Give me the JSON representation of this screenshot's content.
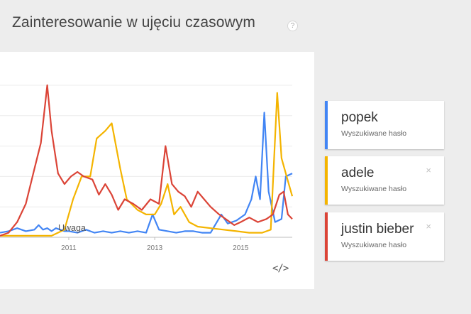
{
  "header": {
    "title": "Zainteresowanie w ujęciu czasowym",
    "help_icon": "?"
  },
  "chart": {
    "annotation": "Uwaga",
    "embed_icon": "</>"
  },
  "terms": [
    {
      "name": "popek",
      "subtitle": "Wyszukiwane hasło",
      "color": "#4285f4",
      "removable": false
    },
    {
      "name": "adele",
      "subtitle": "Wyszukiwane hasło",
      "color": "#f4b400",
      "removable": true,
      "close": "×"
    },
    {
      "name": "justin bieber",
      "subtitle": "Wyszukiwane hasło",
      "color": "#db4437",
      "removable": true,
      "close": "×"
    }
  ],
  "chart_data": {
    "type": "line",
    "title": "",
    "xlabel": "",
    "ylabel": "",
    "x_ticks": [
      "2011",
      "2013",
      "2015"
    ],
    "xlim": [
      2009.4,
      2016.2
    ],
    "ylim": [
      0,
      100
    ],
    "grid": true,
    "series": [
      {
        "name": "popek",
        "color": "#4285f4",
        "points": [
          [
            2009.4,
            3
          ],
          [
            2009.6,
            4
          ],
          [
            2009.8,
            6
          ],
          [
            2010.0,
            4
          ],
          [
            2010.2,
            5
          ],
          [
            2010.3,
            8
          ],
          [
            2010.4,
            5
          ],
          [
            2010.5,
            6
          ],
          [
            2010.6,
            4
          ],
          [
            2010.7,
            6
          ],
          [
            2010.8,
            5
          ],
          [
            2010.9,
            4
          ],
          [
            2011.0,
            4
          ],
          [
            2011.2,
            3
          ],
          [
            2011.4,
            5
          ],
          [
            2011.6,
            3
          ],
          [
            2011.8,
            4
          ],
          [
            2012.0,
            3
          ],
          [
            2012.2,
            4
          ],
          [
            2012.4,
            3
          ],
          [
            2012.6,
            4
          ],
          [
            2012.8,
            3
          ],
          [
            2012.95,
            15
          ],
          [
            2013.1,
            5
          ],
          [
            2013.3,
            4
          ],
          [
            2013.5,
            3
          ],
          [
            2013.7,
            4
          ],
          [
            2013.9,
            4
          ],
          [
            2014.1,
            3
          ],
          [
            2014.3,
            3
          ],
          [
            2014.55,
            15
          ],
          [
            2014.7,
            9
          ],
          [
            2014.9,
            11
          ],
          [
            2015.1,
            15
          ],
          [
            2015.25,
            25
          ],
          [
            2015.35,
            40
          ],
          [
            2015.45,
            25
          ],
          [
            2015.55,
            82
          ],
          [
            2015.65,
            30
          ],
          [
            2015.8,
            10
          ],
          [
            2015.95,
            12
          ],
          [
            2016.05,
            40
          ],
          [
            2016.2,
            42
          ]
        ]
      },
      {
        "name": "adele",
        "color": "#f4b400",
        "points": [
          [
            2009.4,
            1
          ],
          [
            2009.8,
            1
          ],
          [
            2010.2,
            1
          ],
          [
            2010.6,
            1
          ],
          [
            2010.9,
            5
          ],
          [
            2011.1,
            25
          ],
          [
            2011.3,
            40
          ],
          [
            2011.5,
            40
          ],
          [
            2011.65,
            65
          ],
          [
            2011.85,
            70
          ],
          [
            2012.0,
            75
          ],
          [
            2012.2,
            45
          ],
          [
            2012.35,
            25
          ],
          [
            2012.6,
            18
          ],
          [
            2012.8,
            15
          ],
          [
            2013.0,
            15
          ],
          [
            2013.15,
            22
          ],
          [
            2013.3,
            35
          ],
          [
            2013.45,
            15
          ],
          [
            2013.6,
            20
          ],
          [
            2013.8,
            10
          ],
          [
            2014.0,
            7
          ],
          [
            2014.3,
            6
          ],
          [
            2014.6,
            5
          ],
          [
            2014.9,
            4
          ],
          [
            2015.2,
            3
          ],
          [
            2015.5,
            3
          ],
          [
            2015.7,
            5
          ],
          [
            2015.85,
            95
          ],
          [
            2015.95,
            52
          ],
          [
            2016.1,
            37
          ],
          [
            2016.2,
            27
          ]
        ]
      },
      {
        "name": "justin bieber",
        "color": "#db4437",
        "points": [
          [
            2009.4,
            1
          ],
          [
            2009.6,
            3
          ],
          [
            2009.8,
            10
          ],
          [
            2010.0,
            22
          ],
          [
            2010.2,
            45
          ],
          [
            2010.35,
            62
          ],
          [
            2010.5,
            100
          ],
          [
            2010.6,
            70
          ],
          [
            2010.75,
            42
          ],
          [
            2010.9,
            35
          ],
          [
            2011.05,
            40
          ],
          [
            2011.2,
            43
          ],
          [
            2011.35,
            40
          ],
          [
            2011.55,
            38
          ],
          [
            2011.7,
            28
          ],
          [
            2011.85,
            35
          ],
          [
            2012.0,
            28
          ],
          [
            2012.15,
            18
          ],
          [
            2012.3,
            25
          ],
          [
            2012.5,
            22
          ],
          [
            2012.7,
            18
          ],
          [
            2012.9,
            25
          ],
          [
            2013.1,
            22
          ],
          [
            2013.25,
            60
          ],
          [
            2013.4,
            35
          ],
          [
            2013.55,
            30
          ],
          [
            2013.7,
            27
          ],
          [
            2013.85,
            20
          ],
          [
            2014.0,
            30
          ],
          [
            2014.15,
            25
          ],
          [
            2014.3,
            20
          ],
          [
            2014.5,
            15
          ],
          [
            2014.65,
            12
          ],
          [
            2014.85,
            8
          ],
          [
            2015.0,
            10
          ],
          [
            2015.2,
            13
          ],
          [
            2015.4,
            10
          ],
          [
            2015.6,
            12
          ],
          [
            2015.75,
            15
          ],
          [
            2015.9,
            28
          ],
          [
            2016.0,
            30
          ],
          [
            2016.1,
            15
          ],
          [
            2016.2,
            12
          ]
        ]
      }
    ]
  }
}
